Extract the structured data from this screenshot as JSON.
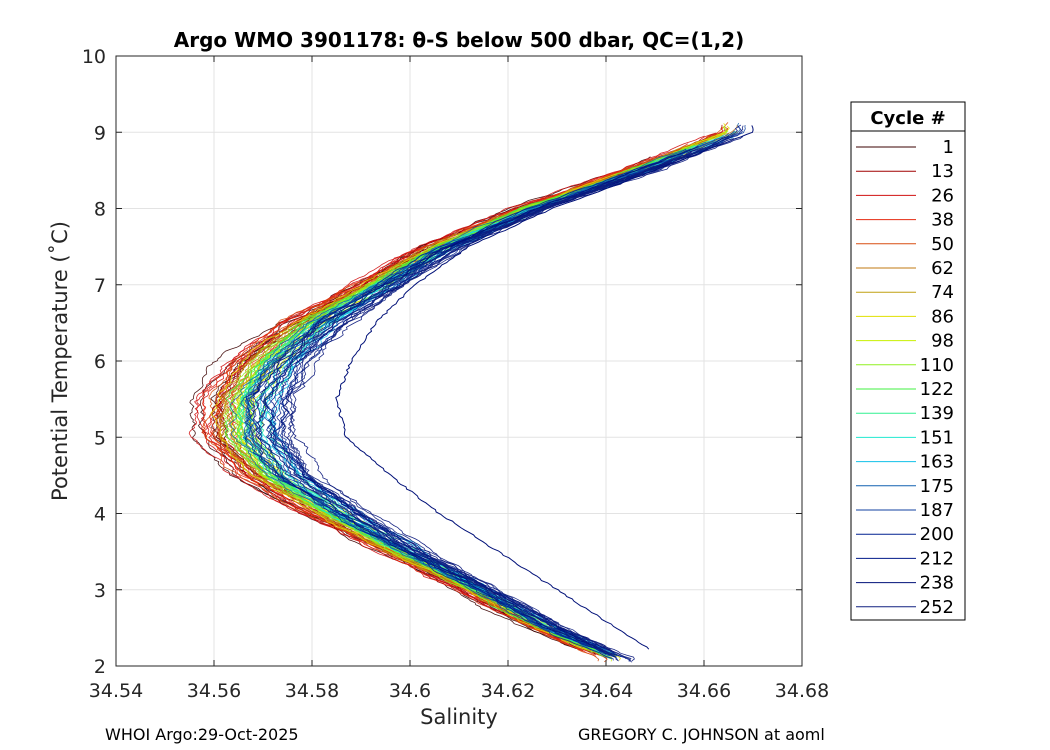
{
  "chart_data": {
    "type": "line",
    "title": "Argo WMO 3901178: θ-S below 500 dbar,  QC=(1,2)",
    "xlabel": "Salinity",
    "ylabel": "Potential Temperature (˚C)",
    "xlim": [
      34.54,
      34.68
    ],
    "ylim": [
      2,
      10
    ],
    "xticks": [
      "34.54",
      "34.56",
      "34.58",
      "34.6",
      "34.62",
      "34.64",
      "34.66",
      "34.68"
    ],
    "yticks": [
      "2",
      "3",
      "4",
      "5",
      "6",
      "7",
      "8",
      "9",
      "10"
    ],
    "grid": true,
    "legend": {
      "title": "Cycle #",
      "placement": "right-outside",
      "entries": [
        "1",
        "13",
        "26",
        "38",
        "50",
        "62",
        "74",
        "86",
        "98",
        "110",
        "122",
        "139",
        "151",
        "163",
        "175",
        "187",
        "200",
        "212",
        "238",
        "252"
      ],
      "colors": [
        "#3b0000",
        "#a00000",
        "#d01010",
        "#e52a10",
        "#d84e10",
        "#c07a10",
        "#c0a010",
        "#e0e000",
        "#c8f000",
        "#90f020",
        "#40f040",
        "#30f090",
        "#20e8d0",
        "#10c0e8",
        "#1060b0",
        "#1040a0",
        "#002090",
        "#001888",
        "#001078",
        "#102080"
      ]
    },
    "series_shape": {
      "description": "theta-S profiles forming a C-shaped curve; salinity minimum near 5.3 degC",
      "theta": [
        9.0,
        8.5,
        8.0,
        7.5,
        7.0,
        6.5,
        6.0,
        5.5,
        5.0,
        4.5,
        4.0,
        3.5,
        3.0,
        2.5,
        2.1
      ],
      "salinity_core": [
        34.666,
        34.647,
        34.625,
        34.607,
        34.594,
        34.581,
        34.572,
        34.567,
        34.567,
        34.573,
        34.585,
        34.599,
        34.614,
        34.628,
        34.642
      ],
      "salinity_outer_blue_profile": [
        34.67,
        34.65,
        34.629,
        34.612,
        34.601,
        34.593,
        34.588,
        34.585,
        34.587,
        34.596,
        34.606,
        34.618,
        34.63,
        34.642,
        34.652
      ]
    }
  },
  "footer": {
    "left": "WHOI Argo:29-Oct-2025",
    "right": "GREGORY C. JOHNSON at aoml"
  }
}
